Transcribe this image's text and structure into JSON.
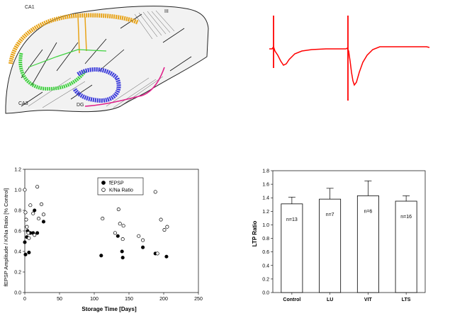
{
  "hippocampus_figure": {
    "labels": [
      "CA1",
      "CA3",
      "DG",
      "III"
    ]
  },
  "chart_data": [
    {
      "type": "scatter",
      "xlabel": "Storage Time [Days]",
      "ylabel": "fEPSP Amplitude / K/Na Ratio [% Control]",
      "xlim": [
        0,
        250
      ],
      "ylim": [
        0.0,
        1.2
      ],
      "xticks": [
        "0",
        "50",
        "100",
        "150",
        "200",
        "250"
      ],
      "yticks": [
        "0.0",
        "0.2",
        "0.4",
        "0.6",
        "0.8",
        "1.0",
        "1.2"
      ],
      "legend_position": "top-center",
      "series": [
        {
          "name": "fEPSP",
          "marker": "filled-circle",
          "color": "#000000",
          "points": [
            [
              0,
              0.49
            ],
            [
              1,
              0.37
            ],
            [
              3,
              0.54
            ],
            [
              4,
              0.6
            ],
            [
              6,
              0.39
            ],
            [
              8,
              0.58
            ],
            [
              12,
              0.58
            ],
            [
              14,
              0.8
            ],
            [
              18,
              0.58
            ],
            [
              27,
              0.69
            ],
            [
              110,
              0.36
            ],
            [
              134,
              0.55
            ],
            [
              140,
              0.4
            ],
            [
              141,
              0.34
            ],
            [
              170,
              0.44
            ],
            [
              188,
              0.38
            ],
            [
              204,
              0.35
            ]
          ]
        },
        {
          "name": "K/Na Ratio",
          "marker": "open-circle",
          "color": "#000000",
          "points": [
            [
              0,
              1.0
            ],
            [
              1,
              0.78
            ],
            [
              2,
              0.71
            ],
            [
              3,
              0.64
            ],
            [
              5,
              0.58
            ],
            [
              6,
              0.53
            ],
            [
              8,
              0.85
            ],
            [
              12,
              0.77
            ],
            [
              14,
              0.56
            ],
            [
              18,
              1.03
            ],
            [
              20,
              0.72
            ],
            [
              24,
              0.86
            ],
            [
              27,
              0.76
            ],
            [
              112,
              0.72
            ],
            [
              130,
              0.58
            ],
            [
              135,
              0.81
            ],
            [
              137,
              0.67
            ],
            [
              141,
              0.52
            ],
            [
              142,
              0.65
            ],
            [
              164,
              0.55
            ],
            [
              170,
              0.51
            ],
            [
              188,
              0.98
            ],
            [
              191,
              0.38
            ],
            [
              196,
              0.71
            ],
            [
              201,
              0.61
            ],
            [
              205,
              0.64
            ]
          ]
        }
      ]
    },
    {
      "type": "bar",
      "ylabel": "LTP Ratio",
      "ylim": [
        0.0,
        1.8
      ],
      "yticks": [
        "0.0",
        "0.2",
        "0.4",
        "0.6",
        "0.8",
        "1.0",
        "1.2",
        "1.4",
        "1.6",
        "1.8"
      ],
      "categories": [
        "Control",
        "LU",
        "VIT",
        "LTS"
      ],
      "values": [
        1.31,
        1.38,
        1.43,
        1.35
      ],
      "errors": [
        0.1,
        0.16,
        0.22,
        0.08
      ],
      "bar_labels": [
        "n=13",
        "n=7",
        "n=6",
        "n=16"
      ]
    }
  ]
}
